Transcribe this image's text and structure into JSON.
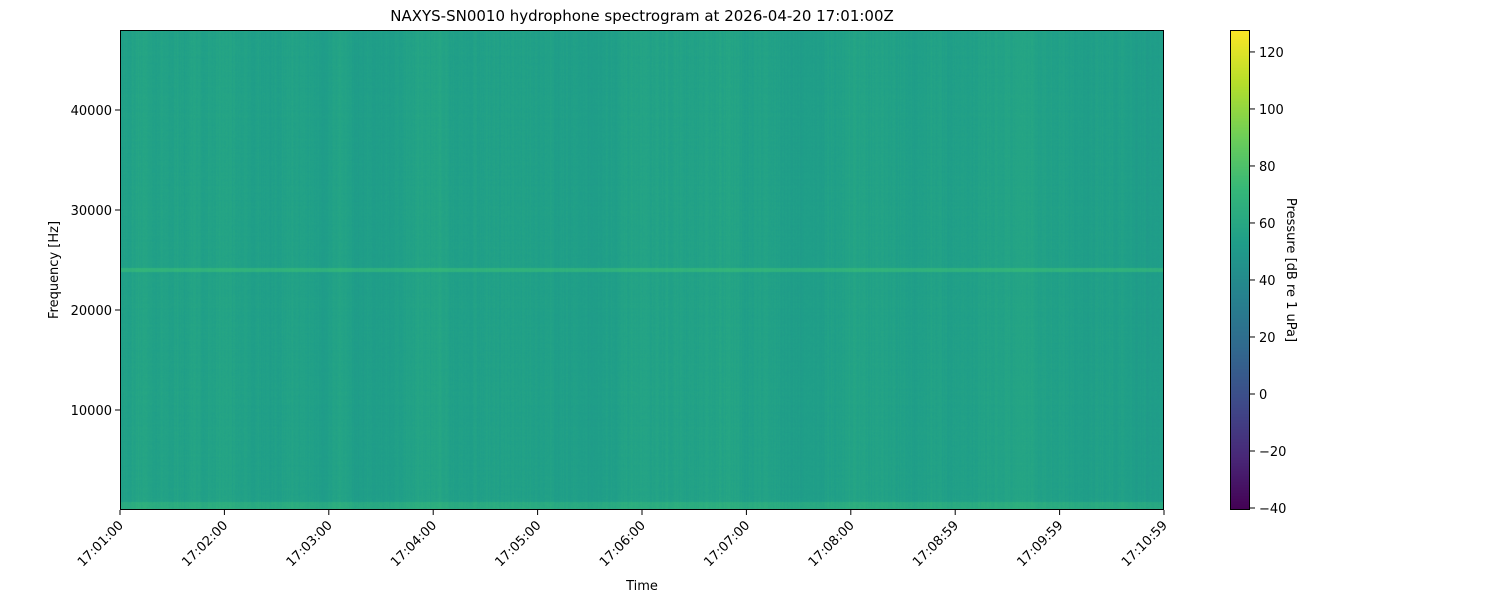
{
  "chart_data": {
    "type": "heatmap",
    "title": "NAXYS-SN0010 hydrophone spectrogram at 2026-04-20 17:01:00Z",
    "xlabel": "Time",
    "ylabel": "Frequency [Hz]",
    "x_tick_labels": [
      "17:01:00",
      "17:02:00",
      "17:03:00",
      "17:04:00",
      "17:05:00",
      "17:06:00",
      "17:07:00",
      "17:08:00",
      "17:08:59",
      "17:09:59",
      "17:10:59"
    ],
    "x_range": [
      "17:01:00",
      "17:10:59"
    ],
    "y_ticks": [
      10000,
      20000,
      30000,
      40000
    ],
    "y_tick_labels": [
      "10000",
      "20000",
      "30000",
      "40000"
    ],
    "ylim": [
      0,
      48000
    ],
    "colorbar": {
      "label": "Pressure [dB re 1 uPa]",
      "colormap": "viridis",
      "range": [
        -40.7,
        127.7
      ],
      "ticks": [
        -40,
        -20,
        0,
        20,
        40,
        60,
        80,
        100,
        120
      ],
      "tick_labels": [
        "−40",
        "−20",
        "0",
        "20",
        "40",
        "60",
        "80",
        "100",
        "120"
      ]
    },
    "broadband_level_db": 55,
    "tone": {
      "frequency_hz": 24000,
      "level_db": 68
    },
    "low_frequency_band": {
      "max_frequency_hz": 800,
      "level_db": 63
    }
  }
}
